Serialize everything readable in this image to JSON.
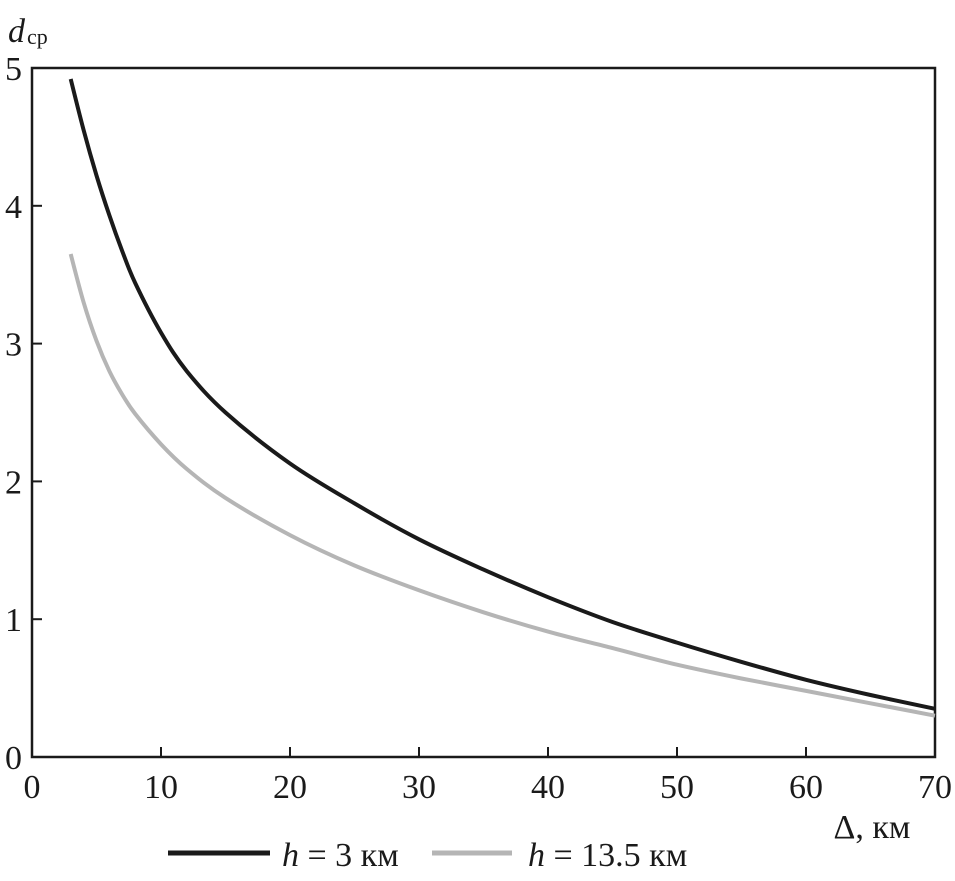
{
  "chart_data": {
    "type": "line",
    "xlabel": "Δ, км",
    "ylabel_main": "d",
    "ylabel_sub": "ср",
    "xlim": [
      0,
      70
    ],
    "ylim": [
      0,
      5
    ],
    "xticks": [
      "0",
      "10",
      "20",
      "30",
      "40",
      "50",
      "60",
      "70"
    ],
    "yticks": [
      "0",
      "1",
      "2",
      "3",
      "4",
      "5"
    ],
    "grid": false,
    "legend_position": "bottom",
    "series": [
      {
        "name_var": "h",
        "name_rest": " = 3 км",
        "color": "#1a1a1a",
        "x": [
          3,
          4,
          5,
          6,
          7,
          8,
          10,
          12,
          15,
          20,
          25,
          30,
          35,
          40,
          45,
          50,
          55,
          60,
          65,
          70
        ],
        "y": [
          4.92,
          4.55,
          4.22,
          3.93,
          3.67,
          3.44,
          3.08,
          2.8,
          2.5,
          2.13,
          1.84,
          1.58,
          1.36,
          1.16,
          0.98,
          0.83,
          0.69,
          0.56,
          0.45,
          0.35
        ]
      },
      {
        "name_var": "h",
        "name_rest": " = 13.5 км",
        "color": "#b5b5b5",
        "x": [
          3,
          4,
          5,
          6,
          7,
          8,
          10,
          12,
          15,
          20,
          25,
          30,
          35,
          40,
          45,
          50,
          55,
          60,
          65,
          70
        ],
        "y": [
          3.65,
          3.3,
          3.02,
          2.8,
          2.63,
          2.49,
          2.27,
          2.09,
          1.88,
          1.61,
          1.39,
          1.21,
          1.05,
          0.91,
          0.79,
          0.67,
          0.57,
          0.48,
          0.39,
          0.3
        ]
      }
    ]
  }
}
